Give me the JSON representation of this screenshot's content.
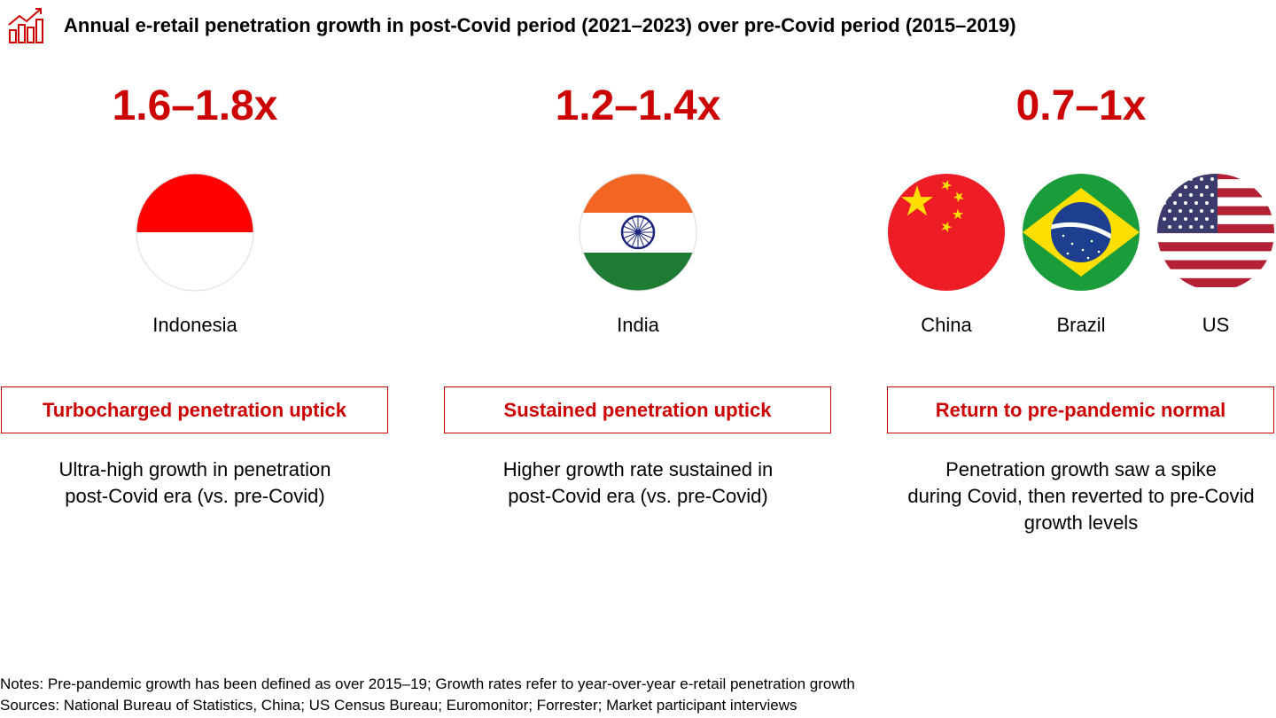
{
  "header": {
    "title": "Annual e-retail penetration growth in post-Covid period (2021–2023) over pre-Covid period (2015–2019)"
  },
  "columns": [
    {
      "range": "1.6–1.8x",
      "countries": [
        "Indonesia"
      ],
      "tag": "Turbocharged penetration uptick",
      "description": [
        "Ultra-high growth in penetration",
        "post-Covid era (vs. pre-Covid)"
      ]
    },
    {
      "range": "1.2–1.4x",
      "countries": [
        "India"
      ],
      "tag": "Sustained penetration uptick",
      "description": [
        "Higher growth rate sustained in",
        "post-Covid era (vs. pre-Covid)"
      ]
    },
    {
      "range": "0.7–1x",
      "countries": [
        "China",
        "Brazil",
        "US"
      ],
      "tag": "Return to pre-pandemic normal",
      "description": [
        "Penetration growth saw a spike",
        "during Covid, then reverted to pre-Covid",
        "growth levels"
      ]
    }
  ],
  "notes": [
    "Notes: Pre-pandemic growth has been defined as over 2015–19; Growth rates refer to year-over-year e-retail penetration growth",
    "Sources: National Bureau of Statistics, China; US Census Bureau; Euromonitor; Forrester; Market participant interviews"
  ]
}
